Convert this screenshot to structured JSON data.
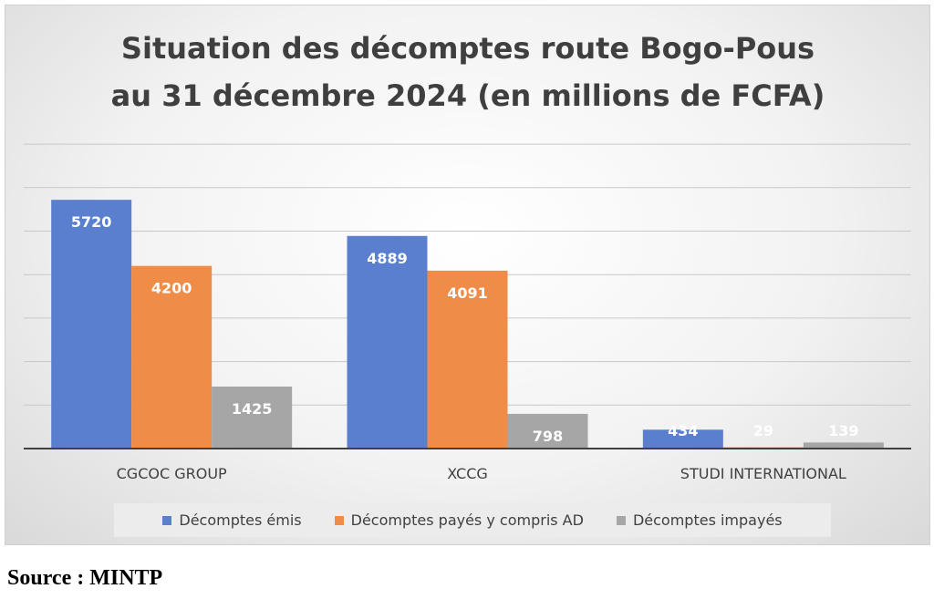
{
  "colors": {
    "series_1": "#5b7fcf",
    "series_2": "#ef8c48",
    "series_3": "#a6a6a6",
    "gridline": "#c8c8c8",
    "axis": "#404040"
  },
  "chart_data": {
    "type": "bar",
    "title_lines": [
      "Situation des décomptes route Bogo-Pous",
      "au 31 décembre 2024 (en millions de FCFA)"
    ],
    "categories": [
      "CGCOC GROUP",
      "XCCG",
      "STUDI INTERNATIONAL"
    ],
    "series": [
      {
        "name": "Décomptes émis",
        "values": [
          5720,
          4889,
          434
        ]
      },
      {
        "name": "Décomptes payés y compris AD",
        "values": [
          4200,
          4091,
          29
        ]
      },
      {
        "name": "Décomptes impayés",
        "values": [
          1425,
          798,
          139
        ]
      }
    ],
    "ylim": [
      0,
      7000
    ],
    "gridline_step": 1000,
    "grid": true,
    "legend_position": "bottom",
    "data_labels": true
  },
  "source": "Source : MINTP"
}
